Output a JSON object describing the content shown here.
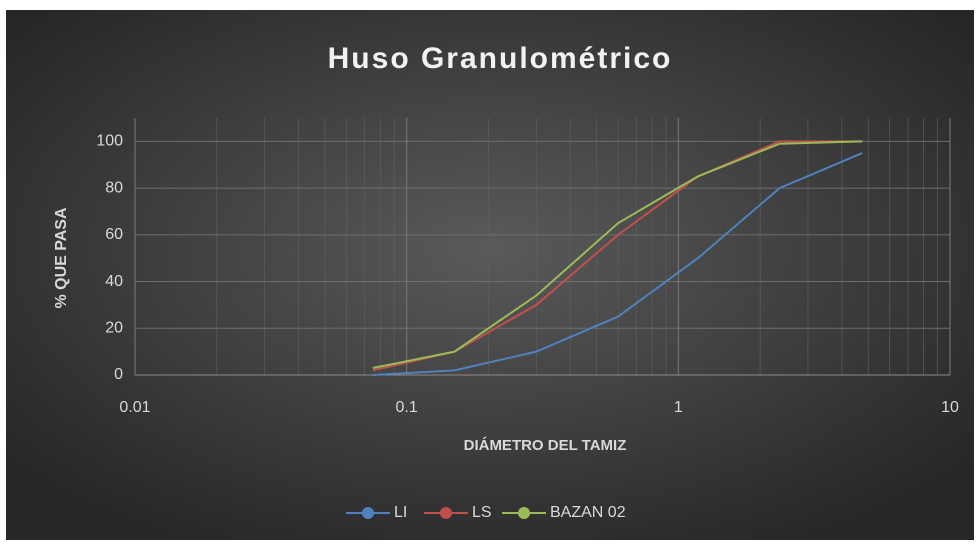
{
  "chart_data": {
    "type": "line",
    "title": "Huso Granulométrico",
    "x_label": "DIÁMETRO DEL TAMIZ",
    "y_label": "% QUE PASA",
    "x": [
      0.075,
      0.15,
      0.3,
      0.6,
      1.18,
      2.36,
      4.75
    ],
    "series": [
      {
        "name": "LI",
        "color": "#4f81bd",
        "values": [
          0,
          2,
          10,
          25,
          50,
          80,
          95
        ]
      },
      {
        "name": "LS",
        "color": "#c0504d",
        "values": [
          2,
          10,
          30,
          60,
          85,
          100,
          100
        ]
      },
      {
        "name": "BAZAN 02",
        "color": "#9bbb59",
        "values": [
          3,
          10,
          34,
          65,
          85,
          99,
          100
        ]
      }
    ],
    "xlim": [
      0.01,
      10
    ],
    "xticks": [
      0.01,
      0.1,
      1,
      10
    ],
    "x_log": true,
    "ylim": [
      0,
      110
    ],
    "yticks": [
      0,
      20,
      40,
      60,
      80,
      100
    ],
    "grid": true,
    "minor_grid": true,
    "legend": "bottom"
  }
}
